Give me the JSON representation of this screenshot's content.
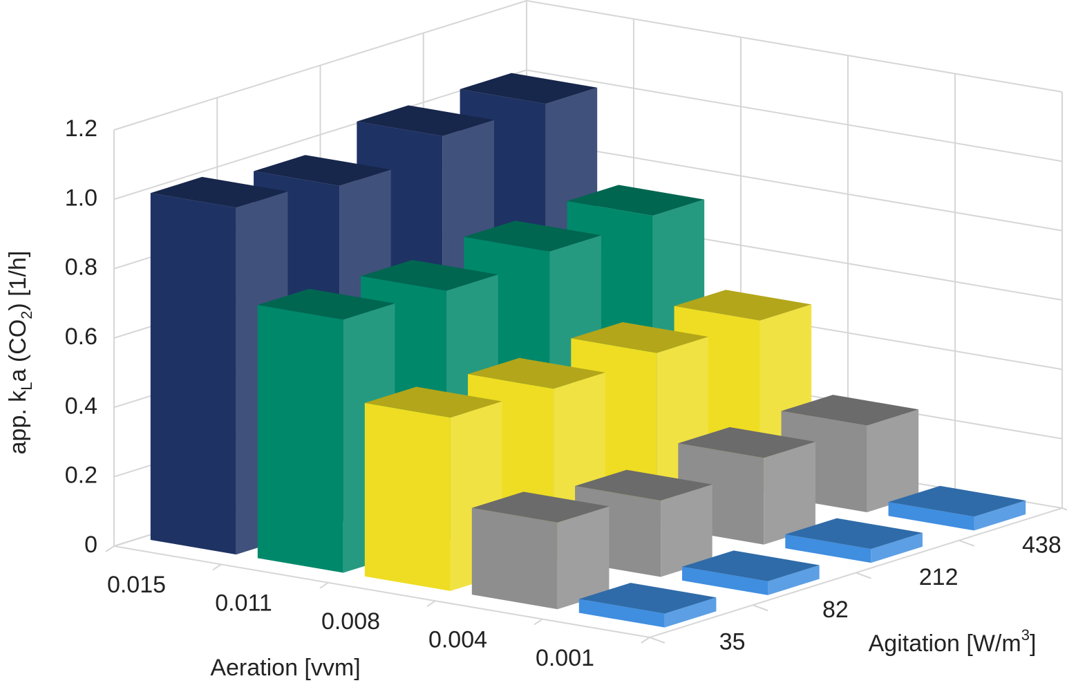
{
  "chart_data": {
    "type": "bar3d",
    "ylabel": {
      "parts": [
        "app. k",
        "L",
        "a (CO",
        "2",
        ") [1/h]"
      ]
    },
    "xlabel": "Aeration [vvm]",
    "zlabel": {
      "parts": [
        "Agitation [W/m",
        "3",
        "]"
      ]
    },
    "categories": [
      "35",
      "82",
      "212",
      "438"
    ],
    "series": [
      {
        "name": "0.015",
        "color": "#1e3264",
        "values": [
          1.0,
          0.97,
          1.02,
          1.02
        ]
      },
      {
        "name": "0.011",
        "color": "#00886b",
        "values": [
          0.73,
          0.72,
          0.74,
          0.75
        ]
      },
      {
        "name": "0.008",
        "color": "#eedd22",
        "values": [
          0.5,
          0.49,
          0.5,
          0.5
        ]
      },
      {
        "name": "0.004",
        "color": "#8e8e8e",
        "values": [
          0.25,
          0.22,
          0.25,
          0.25
        ]
      },
      {
        "name": "0.001",
        "color": "#3f8ee0",
        "values": [
          0.04,
          0.04,
          0.04,
          0.04
        ]
      }
    ],
    "ylim": [
      0,
      1.2
    ],
    "yticks": [
      0,
      0.2,
      0.4,
      0.6,
      0.8,
      {
        "value": 1,
        "label": "1.0"
      },
      1.2
    ],
    "grid": true
  }
}
